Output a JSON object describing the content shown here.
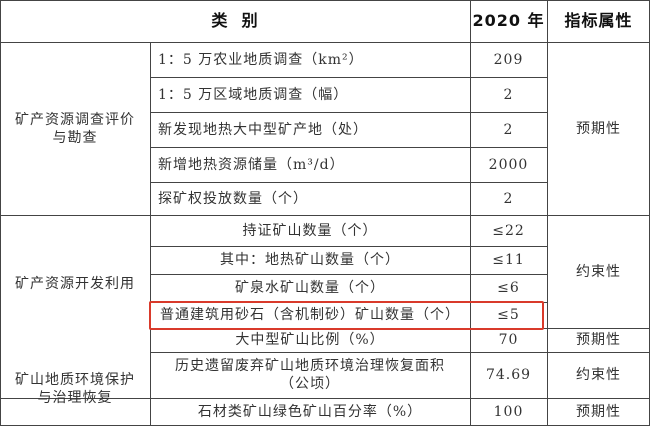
{
  "header": {
    "category": "类  别",
    "year": "2020 年",
    "attribute": "指标属性"
  },
  "groups": [
    {
      "name": "矿产资源调查评价与勘查",
      "name_lines": [
        "矿产资源调查评价",
        "与勘查"
      ],
      "rows": [
        {
          "item": "1：5 万农业地质调查（km²）",
          "value": "209"
        },
        {
          "item": "1：5 万区域地质调查（幅）",
          "value": "2"
        },
        {
          "item": "新发现地热大中型矿产地（处）",
          "value": "2"
        },
        {
          "item": "新增地热资源储量（m³/d）",
          "value": "2000"
        },
        {
          "item": "探矿权投放数量（个）",
          "value": "2"
        }
      ],
      "attribute": "预期性"
    },
    {
      "name": "矿产资源开发利用",
      "rows": [
        {
          "item": "持证矿山数量（个）",
          "value": "≤22"
        },
        {
          "item": "其中：地热矿山数量（个）",
          "value": "≤11"
        },
        {
          "item": "矿泉水矿山数量（个）",
          "value": "≤6"
        },
        {
          "item": "普通建筑用砂石（含机制砂）矿山数量（个）",
          "value": "≤5",
          "highlighted": true
        },
        {
          "item": "大中型矿山比例（%）",
          "value": "70"
        }
      ],
      "attributes": [
        "约束性",
        "预期性"
      ]
    },
    {
      "name": "矿山地质环境保护与治理恢复",
      "name_lines": [
        "矿山地质环境保护",
        "与治理恢复"
      ],
      "rows": [
        {
          "item_lines": [
            "历史遗留废弃矿山地质环境治理恢复面积",
            "（公顷）"
          ],
          "value": "74.69",
          "attribute": "约束性"
        },
        {
          "item": "石材类矿山绿色矿山百分率（%）",
          "value": "100",
          "attribute": "预期性"
        }
      ]
    }
  ],
  "colors": {
    "highlight_border": "#d93a2b"
  }
}
